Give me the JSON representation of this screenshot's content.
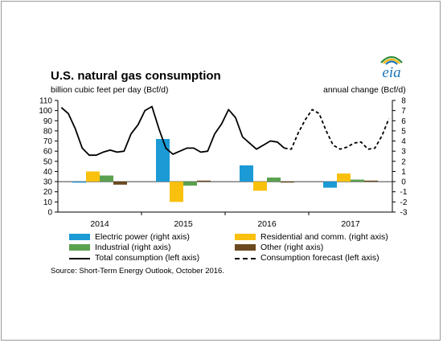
{
  "logo_text": "eia",
  "chart_data": {
    "type": "bar",
    "title": "U.S. natural gas consumption",
    "ylabel": "billion cubic feet per day (Bcf/d)",
    "y2label": "annual change (Bcf/d)",
    "ylim": [
      0,
      110
    ],
    "y2lim": [
      -3,
      8
    ],
    "yticks": [
      "0",
      "10",
      "20",
      "30",
      "40",
      "50",
      "60",
      "70",
      "80",
      "90",
      "100",
      "110"
    ],
    "y2ticks": [
      "-3",
      "-2",
      "-1",
      "0",
      "1",
      "2",
      "3",
      "4",
      "5",
      "6",
      "7",
      "8"
    ],
    "categories": [
      "2014",
      "2015",
      "2016",
      "2017"
    ],
    "bar_series": [
      {
        "name": "Electric power (right axis)",
        "color": "#1b9ad6",
        "values": [
          -0.1,
          4.2,
          1.6,
          -0.6
        ]
      },
      {
        "name": "Residential and comm. (right axis)",
        "color": "#f9c10e",
        "values": [
          1.0,
          -2.0,
          -0.9,
          0.8
        ]
      },
      {
        "name": "Industrial (right axis)",
        "color": "#5ba150",
        "values": [
          0.6,
          -0.4,
          0.4,
          0.2
        ]
      },
      {
        "name": "Other (right axis)",
        "color": "#6b4a1f",
        "values": [
          -0.3,
          0.1,
          0.0,
          0.1
        ]
      }
    ],
    "line_series": [
      {
        "name": "Total consumption (left axis)",
        "color": "#000000",
        "style": "solid",
        "x": [
          "2014-01",
          "2014-02",
          "2014-03",
          "2014-04",
          "2014-05",
          "2014-06",
          "2014-07",
          "2014-08",
          "2014-09",
          "2014-10",
          "2014-11",
          "2014-12",
          "2015-01",
          "2015-02",
          "2015-03",
          "2015-04",
          "2015-05",
          "2015-06",
          "2015-07",
          "2015-08",
          "2015-09",
          "2015-10",
          "2015-11",
          "2015-12",
          "2016-01",
          "2016-02",
          "2016-03",
          "2016-04",
          "2016-05",
          "2016-06",
          "2016-07",
          "2016-08",
          "2016-09"
        ],
        "values": [
          103,
          97,
          82,
          63,
          56,
          56,
          59,
          61,
          59,
          60,
          77,
          86,
          100,
          104,
          82,
          63,
          57,
          60,
          63,
          63,
          59,
          60,
          77,
          87,
          101,
          93,
          74,
          68,
          62,
          66,
          70,
          69,
          63
        ]
      },
      {
        "name": "Consumption forecast (left axis)",
        "color": "#000000",
        "style": "dashed",
        "x": [
          "2016-09",
          "2016-10",
          "2016-11",
          "2016-12",
          "2017-01",
          "2017-02",
          "2017-03",
          "2017-04",
          "2017-05",
          "2017-06",
          "2017-07",
          "2017-08",
          "2017-09",
          "2017-10",
          "2017-11",
          "2017-12"
        ],
        "values": [
          63,
          62,
          78,
          91,
          101,
          97,
          80,
          66,
          62,
          64,
          68,
          69,
          62,
          63,
          75,
          92
        ]
      }
    ],
    "grid": false,
    "legend_position": "bottom"
  },
  "source": "Source: Short-Term Energy Outlook, October 2016."
}
